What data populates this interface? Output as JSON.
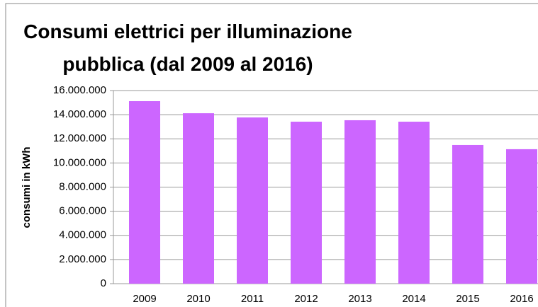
{
  "chart_data": {
    "type": "bar",
    "title": "Consumi elettrici per illuminazione pubblica (dal 2009 al 2016)",
    "y_label": "consumi in kWh",
    "categories": [
      "2009",
      "2010",
      "2011",
      "2012",
      "2013",
      "2014",
      "2015",
      "2016"
    ],
    "values": [
      15120000,
      14120000,
      13770000,
      13420000,
      13540000,
      13420000,
      11490000,
      11140000
    ],
    "color": "#cc66ff",
    "ylim": [
      0,
      16000000
    ],
    "yticks": [
      0,
      {
        "value": 2000000,
        "label": "2.000.000"
      },
      {
        "value": 4000000,
        "label": "4.000.000"
      },
      {
        "value": 6000000,
        "label": "6.000.000"
      },
      {
        "value": 8000000,
        "label": "8.000.000"
      },
      {
        "value": 10000000,
        "label": "10.000.000"
      },
      {
        "value": 12000000,
        "label": "12.000.000"
      },
      {
        "value": 14000000,
        "label": "14.000.000"
      },
      {
        "value": 16000000,
        "label": "16.000.000"
      }
    ],
    "grid": true
  }
}
